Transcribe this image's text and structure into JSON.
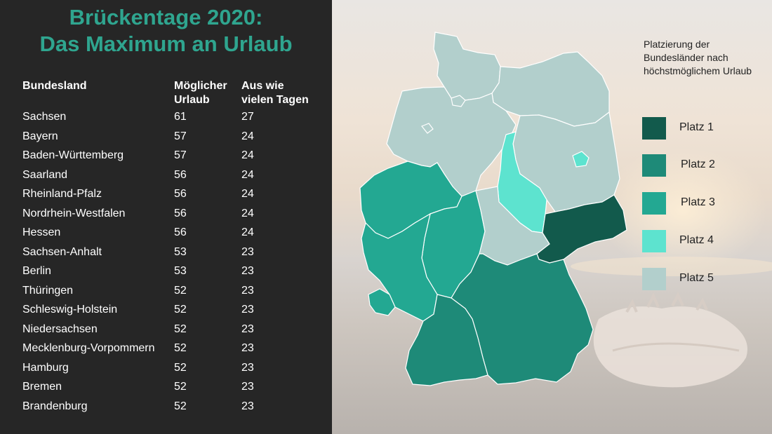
{
  "title": {
    "line1": "Brückentage 2020:",
    "line2": "Das Maximum an Urlaub"
  },
  "table": {
    "headers": {
      "col1": "Bundesland",
      "col2": "Möglicher Urlaub",
      "col3": "Aus wie vielen Tagen"
    },
    "rows": [
      {
        "state": "Sachsen",
        "urlaub": "61",
        "tage": "27"
      },
      {
        "state": "Bayern",
        "urlaub": "57",
        "tage": "24"
      },
      {
        "state": "Baden-Württemberg",
        "urlaub": "57",
        "tage": "24"
      },
      {
        "state": "Saarland",
        "urlaub": "56",
        "tage": "24"
      },
      {
        "state": "Rheinland-Pfalz",
        "urlaub": "56",
        "tage": "24"
      },
      {
        "state": "Nordrhein-Westfalen",
        "urlaub": "56",
        "tage": "24"
      },
      {
        "state": "Hessen",
        "urlaub": "56",
        "tage": "24"
      },
      {
        "state": "Sachsen-Anhalt",
        "urlaub": "53",
        "tage": "23"
      },
      {
        "state": "Berlin",
        "urlaub": "53",
        "tage": "23"
      },
      {
        "state": "Thüringen",
        "urlaub": "52",
        "tage": "23"
      },
      {
        "state": "Schleswig-Holstein",
        "urlaub": "52",
        "tage": "23"
      },
      {
        "state": "Niedersachsen",
        "urlaub": "52",
        "tage": "23"
      },
      {
        "state": "Mecklenburg-Vorpommern",
        "urlaub": "52",
        "tage": "23"
      },
      {
        "state": "Hamburg",
        "urlaub": "52",
        "tage": "23"
      },
      {
        "state": "Bremen",
        "urlaub": "52",
        "tage": "23"
      },
      {
        "state": "Brandenburg",
        "urlaub": "52",
        "tage": "23"
      }
    ]
  },
  "legend": {
    "heading": "Platzierung der Bundesländer nach höchstmöglichem Urlaub",
    "items": [
      {
        "label": "Platz 1",
        "color": "#125a4c"
      },
      {
        "label": "Platz 2",
        "color": "#1e8a78"
      },
      {
        "label": "Platz 3",
        "color": "#23a892"
      },
      {
        "label": "Platz 4",
        "color": "#5de3cf"
      },
      {
        "label": "Platz 5",
        "color": "#b2cfcc"
      }
    ]
  },
  "colors": {
    "left_background": "#262626",
    "title_color": "#2fa58f"
  }
}
